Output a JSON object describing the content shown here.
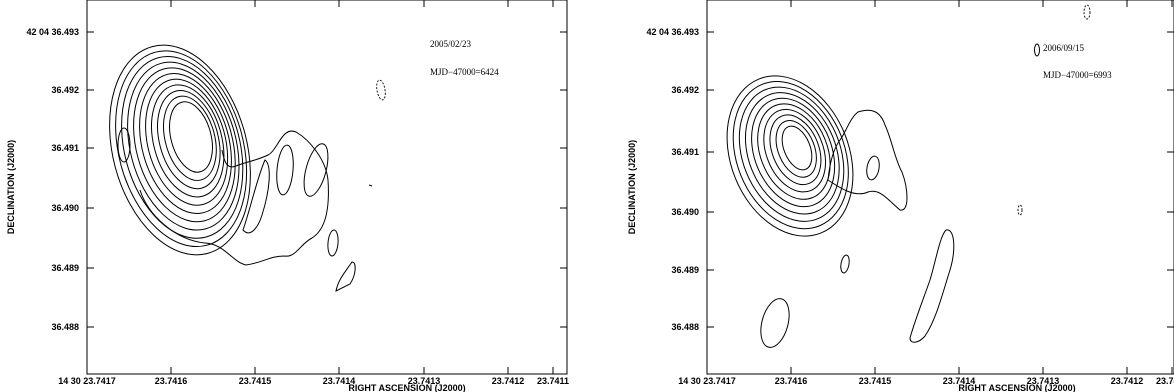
{
  "chart_data": [
    {
      "type": "contour",
      "xlabel": "RIGHT ASCENSION (J2000)",
      "ylabel": "DECLINATION (J2000)",
      "x_ticks": [
        "14 30 23.7417",
        "23.7416",
        "23.7415",
        "23.7414",
        "23.7413",
        "23.7412",
        "23.7411"
      ],
      "y_ticks": [
        "42 04 36.493",
        "36.492",
        "36.491",
        "36.490",
        "36.489",
        "36.488"
      ],
      "annotations": [
        "2005/02/23",
        "MJD−47000=6424"
      ],
      "peak": {
        "ra": "23.74165",
        "dec": "36.4910"
      }
    },
    {
      "type": "contour",
      "xlabel": "RIGHT ASCENSION (J2000)",
      "ylabel": "DECLINATION (J2000)",
      "x_ticks": [
        "14 30 23.7417",
        "23.7416",
        "23.7415",
        "23.7414",
        "23.7413",
        "23.7412",
        "23.7411"
      ],
      "y_ticks": [
        "42 04 36.493",
        "36.492",
        "36.491",
        "36.490",
        "36.489",
        "36.488"
      ],
      "annotations": [
        "2006/09/15",
        "MJD−47000=6993"
      ],
      "peak": {
        "ra": "23.74164",
        "dec": "36.4910"
      }
    }
  ]
}
